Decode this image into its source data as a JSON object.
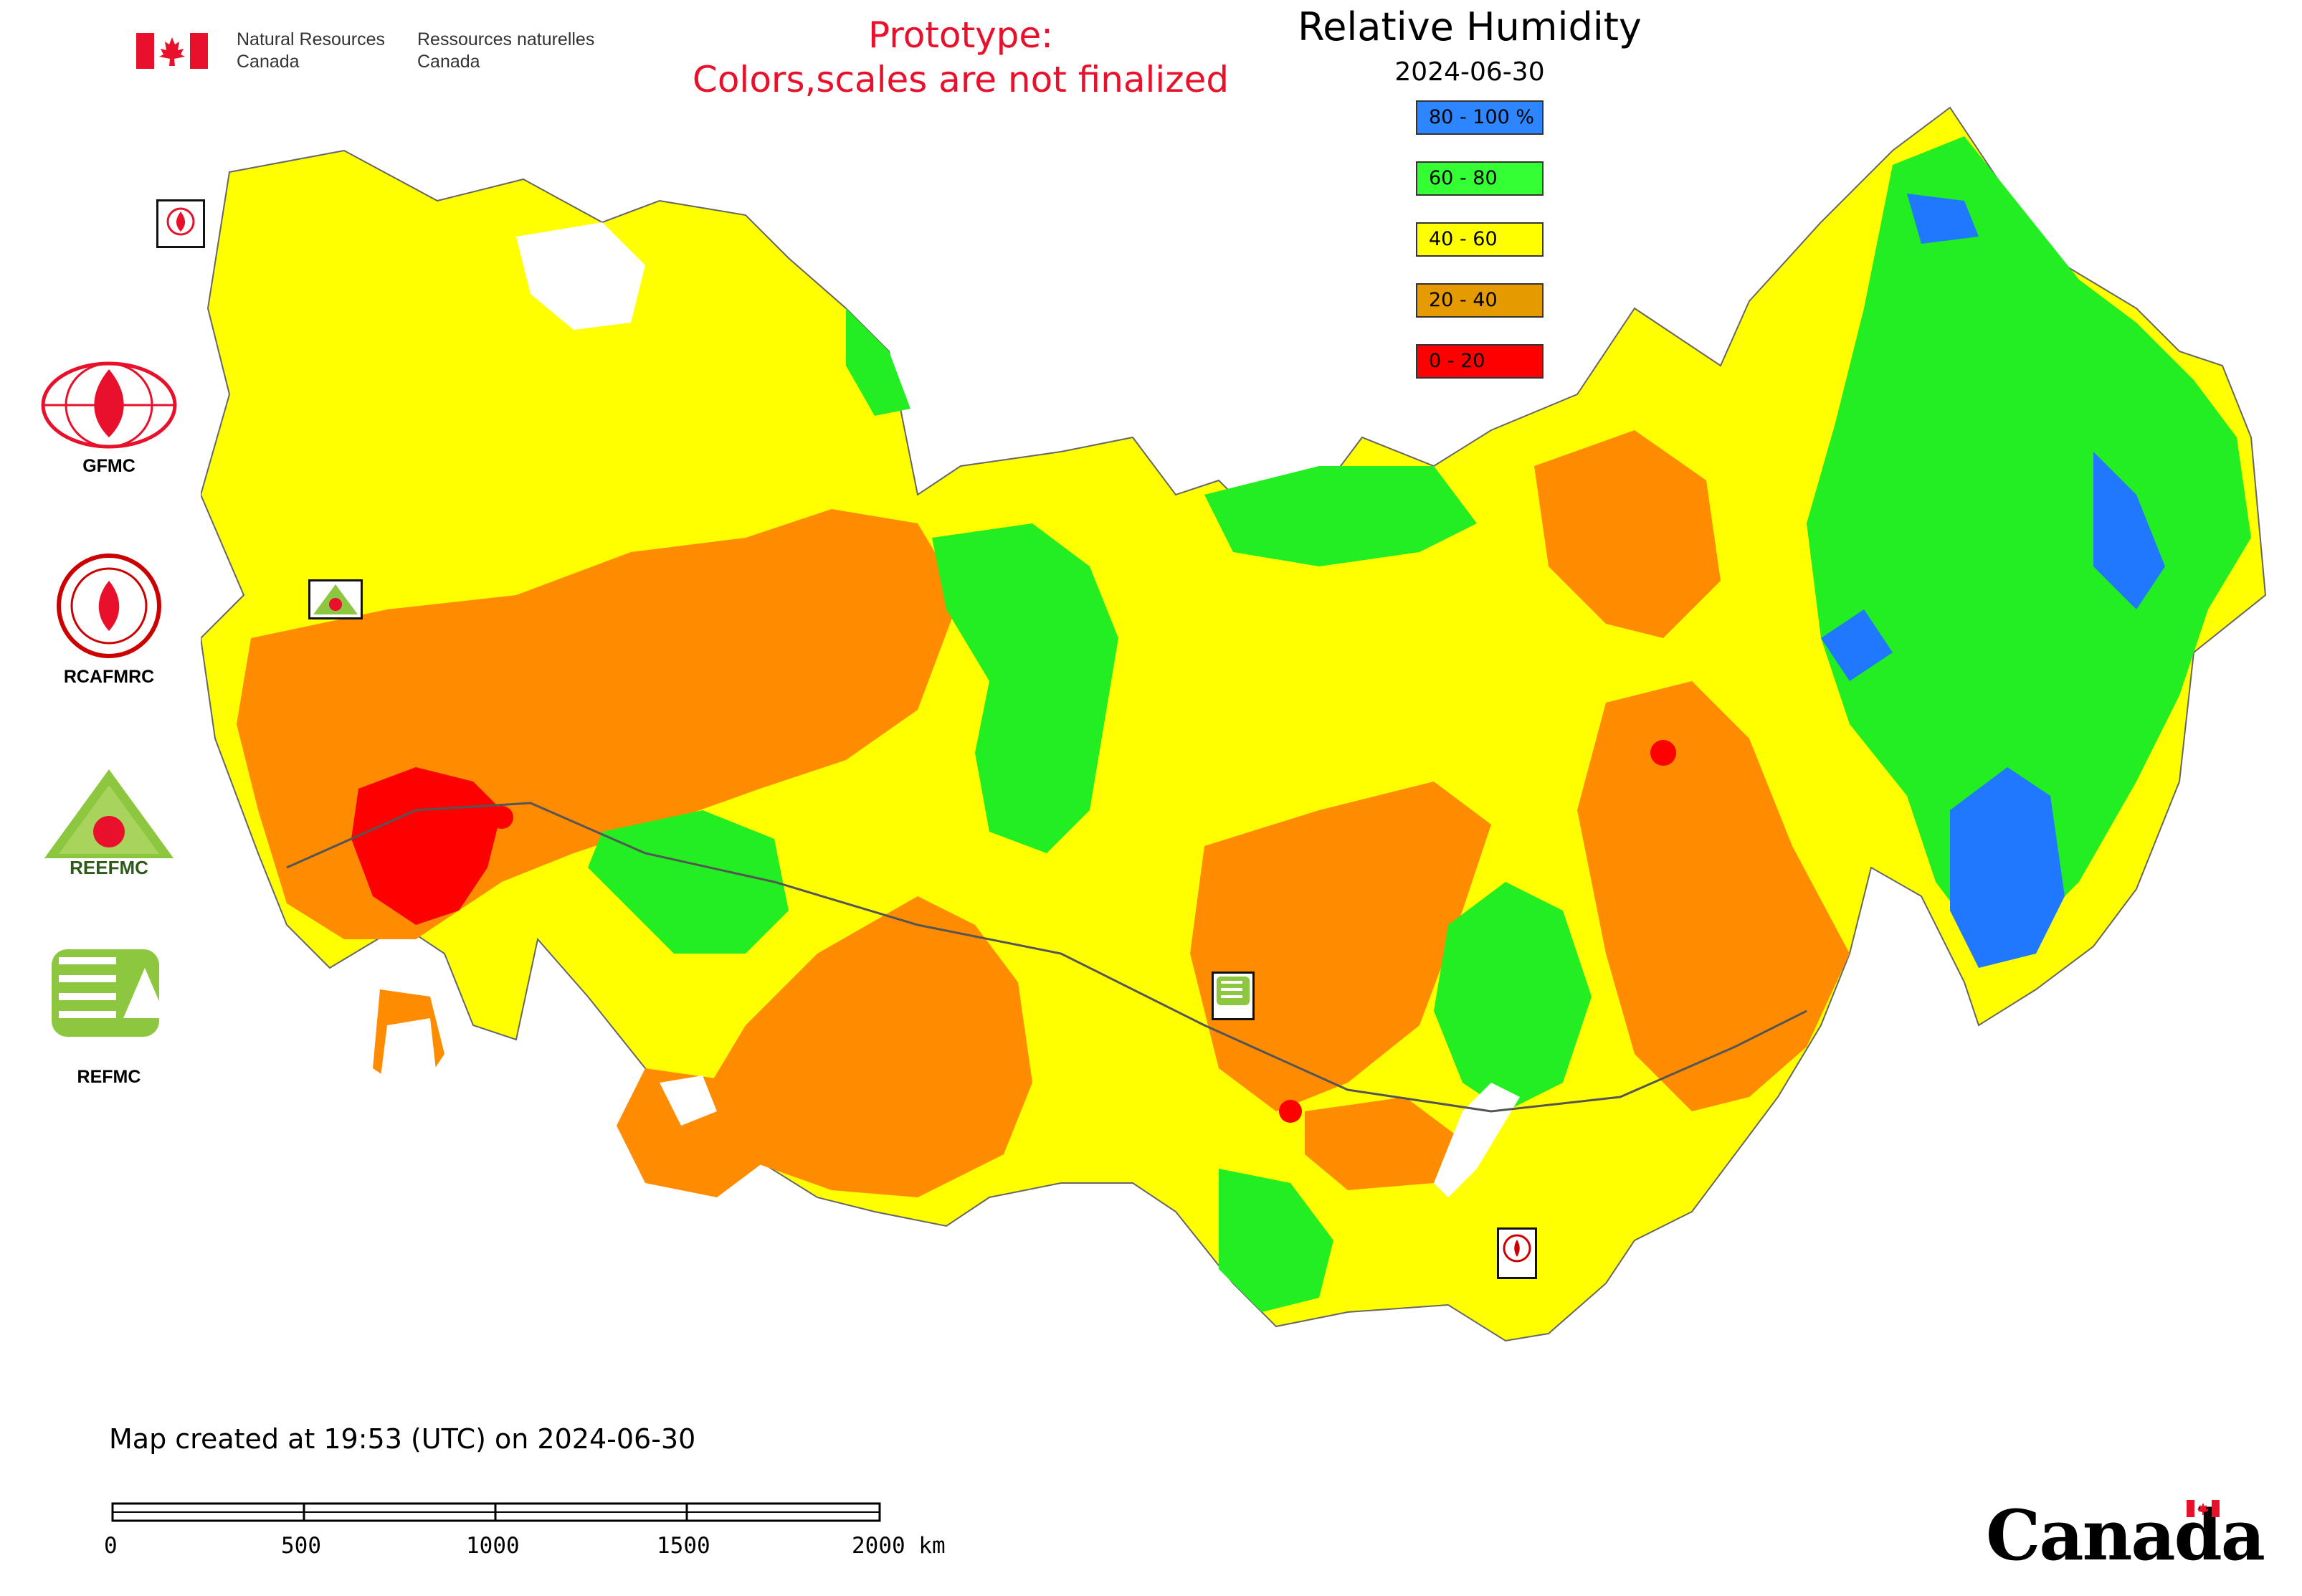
{
  "header": {
    "agency_en": [
      "Natural Resources",
      "Canada"
    ],
    "agency_fr": [
      "Ressources naturelles",
      "Canada"
    ],
    "prototype_notice": [
      "Prototype:",
      "Colors,scales are not finalized"
    ],
    "map_title": "Relative Humidity",
    "map_date": "2024-06-30"
  },
  "legend": [
    {
      "label": "80 - 100 %",
      "color": "#2d86ff"
    },
    {
      "label": "60 - 80",
      "color": "#33ff33"
    },
    {
      "label": "40 - 60",
      "color": "#ffff00"
    },
    {
      "label": "20 - 40",
      "color": "#e59a00"
    },
    {
      "label": "0 - 20",
      "color": "#ff0000"
    }
  ],
  "map_colors": {
    "very_humid": "#1f78ff",
    "humid": "#22ee22",
    "moderate": "#ffff00",
    "dry": "#ff8c00",
    "very_dry": "#ff0000",
    "water": "#ffffff",
    "border": "#555555"
  },
  "partner_logos": [
    {
      "label": "GFMC",
      "icon": "gfmc-globe-fire-icon"
    },
    {
      "label": "RCAFMRC",
      "icon": "rcafmrc-seal-icon"
    },
    {
      "label": "",
      "icon": "reefmc-triangle-icon",
      "wordmark": "REEFMC"
    },
    {
      "label": "REFMC",
      "icon": "refmc-emblem-icon"
    }
  ],
  "footer": {
    "created": "Map created at 19:53 (UTC) on 2024-06-30",
    "scale_labels": [
      "0",
      "500",
      "1000",
      "1500",
      "2000 km"
    ],
    "wordmark": "Canada"
  }
}
